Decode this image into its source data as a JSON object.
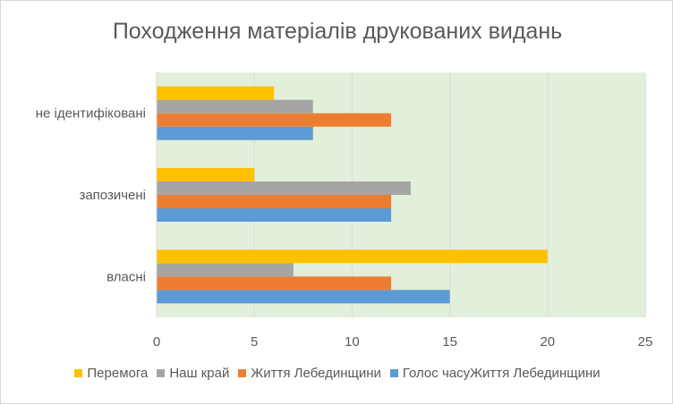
{
  "chart_data": {
    "type": "bar",
    "orientation": "horizontal",
    "title": "Походження матеріалів друкованих видань",
    "categories": [
      "власні",
      "запозичені",
      "не ідентифіковані"
    ],
    "series": [
      {
        "name": "Голос часуЖиття Лебединщини",
        "color": "#5b9bd5",
        "values": [
          15,
          12,
          8
        ]
      },
      {
        "name": "Життя Лебединщини",
        "color": "#ed7d31",
        "values": [
          12,
          12,
          12
        ]
      },
      {
        "name": "Наш край",
        "color": "#a5a5a5",
        "values": [
          7,
          13,
          8
        ]
      },
      {
        "name": "Перемога",
        "color": "#ffc000",
        "values": [
          20,
          5,
          6
        ]
      }
    ],
    "xlim": [
      0,
      25
    ],
    "xticks": [
      0,
      5,
      10,
      15,
      20,
      25
    ],
    "plot_background": "#e2efda",
    "grid": true,
    "legend_position": "bottom"
  }
}
